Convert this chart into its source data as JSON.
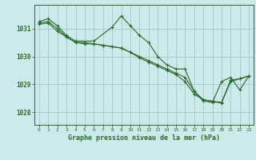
{
  "background_color": "#cceaea",
  "grid_color": "#aacccc",
  "line_color": "#2d6a2d",
  "marker_color": "#2d6a2d",
  "title": "Graphe pression niveau de la mer (hPa)",
  "xlim": [
    -0.5,
    23.5
  ],
  "ylim": [
    1027.55,
    1031.85
  ],
  "yticks": [
    1028,
    1029,
    1030,
    1031
  ],
  "xticks": [
    0,
    1,
    2,
    3,
    4,
    5,
    6,
    7,
    8,
    9,
    10,
    11,
    12,
    13,
    14,
    15,
    16,
    17,
    18,
    19,
    20,
    21,
    22,
    23
  ],
  "series": [
    {
      "x": [
        0,
        1,
        2,
        3,
        4,
        6,
        8,
        9,
        10,
        11,
        12,
        13,
        14,
        15,
        16,
        17,
        18,
        19,
        20,
        21,
        22,
        23
      ],
      "y": [
        1031.25,
        1031.35,
        1031.1,
        1030.75,
        1030.55,
        1030.55,
        1031.05,
        1031.45,
        1031.1,
        1030.75,
        1030.5,
        1030.0,
        1029.7,
        1029.55,
        1029.55,
        1028.75,
        1028.4,
        1028.35,
        1029.1,
        1029.25,
        1028.8,
        1029.3
      ]
    },
    {
      "x": [
        0,
        1,
        2,
        3,
        4,
        5,
        6,
        7,
        8,
        9,
        10,
        11,
        12,
        13,
        14,
        15,
        16,
        17,
        18,
        19,
        20,
        21,
        22,
        23
      ],
      "y": [
        1031.2,
        1031.25,
        1031.0,
        1030.7,
        1030.5,
        1030.45,
        1030.45,
        1030.4,
        1030.35,
        1030.3,
        1030.15,
        1030.0,
        1029.85,
        1029.7,
        1029.55,
        1029.4,
        1029.25,
        1028.75,
        1028.45,
        1028.4,
        1028.35,
        1029.15,
        1029.2,
        1029.3
      ]
    },
    {
      "x": [
        0,
        1,
        2,
        3,
        4,
        5,
        6,
        7,
        8,
        9,
        10,
        11,
        12,
        13,
        14,
        15,
        16,
        17,
        18,
        19,
        20,
        21,
        22,
        23
      ],
      "y": [
        1031.15,
        1031.2,
        1030.9,
        1030.7,
        1030.5,
        1030.5,
        1030.45,
        1030.4,
        1030.35,
        1030.3,
        1030.15,
        1029.95,
        1029.8,
        1029.65,
        1029.5,
        1029.35,
        1029.1,
        1028.65,
        1028.45,
        1028.38,
        1028.33,
        1029.1,
        1029.2,
        1029.3
      ]
    }
  ]
}
